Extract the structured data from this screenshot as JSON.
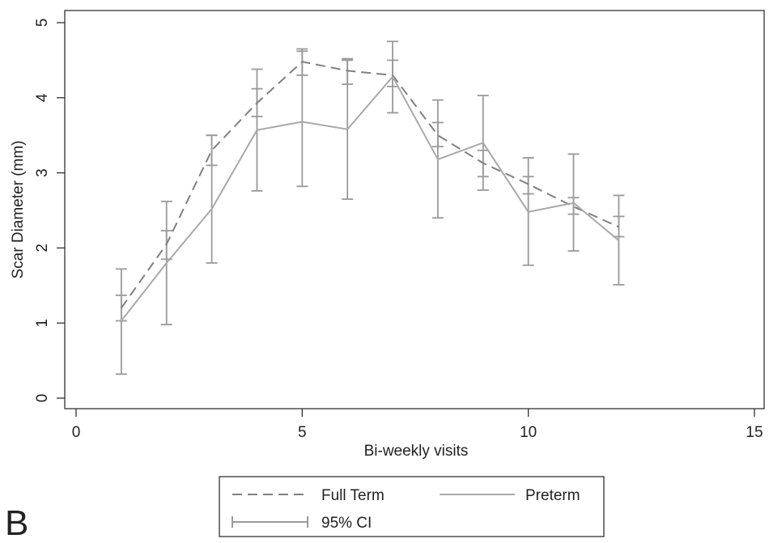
{
  "panel_label": "B",
  "chart_data": {
    "type": "line",
    "xlabel": "Bi-weekly visits",
    "ylabel": "Scar Diameter (mm)",
    "xlim": [
      0,
      15
    ],
    "ylim": [
      0,
      5
    ],
    "x_ticks": [
      "0",
      "5",
      "10",
      "15"
    ],
    "y_ticks": [
      "0",
      "1",
      "2",
      "3",
      "4",
      "5"
    ],
    "grid": false,
    "legend_position": "bottom",
    "legend": {
      "full_term": "Full Term",
      "preterm": "Preterm",
      "ci": "95% CI"
    },
    "colors": {
      "full_term": "#808080",
      "preterm": "#a9a9a9",
      "ci": "#9a9a9a",
      "axis": "#333333"
    },
    "series": [
      {
        "name": "Full Term",
        "style": "dashed",
        "x": [
          1,
          2,
          3,
          4,
          5,
          6,
          7,
          8,
          9,
          10,
          11,
          12
        ],
        "y": [
          1.2,
          2.05,
          3.3,
          3.93,
          4.48,
          4.36,
          4.3,
          3.5,
          3.13,
          2.85,
          2.55,
          2.28
        ],
        "ci_low": [
          1.03,
          1.85,
          3.1,
          3.75,
          4.3,
          4.18,
          4.15,
          3.35,
          2.95,
          2.72,
          2.45,
          2.15
        ],
        "ci_high": [
          1.37,
          2.23,
          3.5,
          4.12,
          4.65,
          4.52,
          4.5,
          3.67,
          3.3,
          2.95,
          2.67,
          2.42
        ]
      },
      {
        "name": "Preterm",
        "style": "solid",
        "x": [
          1,
          2,
          3,
          4,
          5,
          6,
          7,
          8,
          9,
          10,
          11,
          12
        ],
        "y": [
          1.03,
          1.8,
          2.52,
          3.57,
          3.68,
          3.58,
          4.28,
          3.18,
          3.4,
          2.48,
          2.6,
          2.1
        ],
        "ci_low": [
          0.32,
          0.98,
          1.8,
          2.76,
          2.82,
          2.65,
          3.8,
          2.4,
          2.77,
          1.77,
          1.96,
          1.51
        ],
        "ci_high": [
          1.72,
          2.62,
          3.5,
          4.38,
          4.62,
          4.5,
          4.75,
          3.97,
          4.03,
          3.2,
          3.25,
          2.7
        ]
      }
    ]
  }
}
